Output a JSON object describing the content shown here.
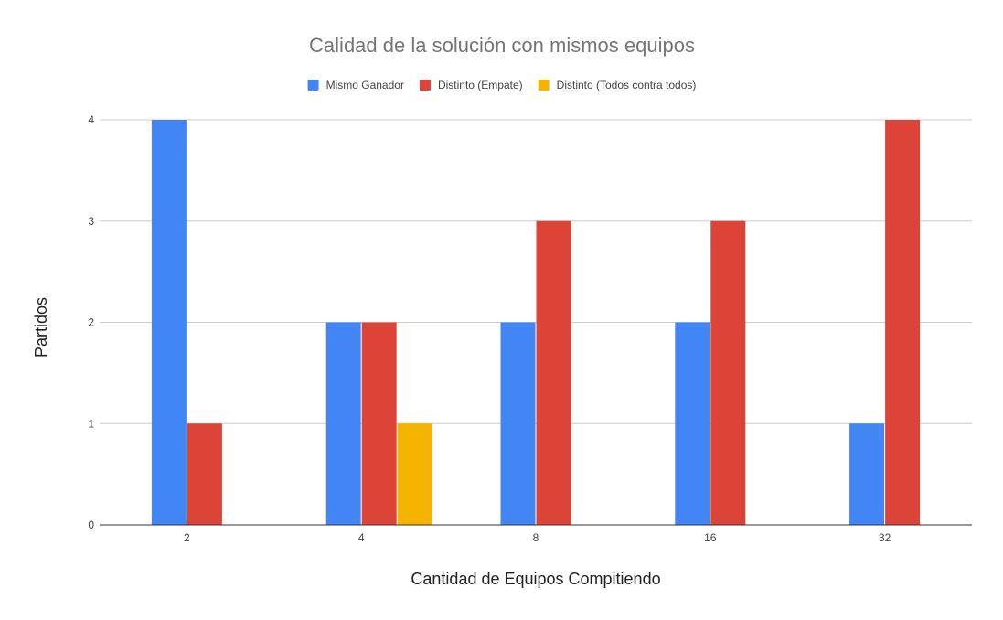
{
  "chart_data": {
    "type": "bar",
    "title": "Calidad de la solución con mismos equipos",
    "xlabel": "Cantidad de Equipos Compitiendo",
    "ylabel": "Partidos",
    "categories": [
      "2",
      "4",
      "8",
      "16",
      "32"
    ],
    "ylim": [
      0,
      4
    ],
    "yticks": [
      "0",
      "1",
      "2",
      "3",
      "4"
    ],
    "grid": true,
    "legend_position": "top",
    "series": [
      {
        "name": "Mismo Ganador",
        "color": "#4285f4",
        "values": [
          4,
          2,
          2,
          2,
          1
        ]
      },
      {
        "name": "Distinto (Empate)",
        "color": "#db4437",
        "values": [
          1,
          2,
          3,
          3,
          4
        ]
      },
      {
        "name": "Distinto (Todos contra todos)",
        "color": "#f4b400",
        "values": [
          null,
          1,
          null,
          null,
          null
        ]
      }
    ]
  }
}
